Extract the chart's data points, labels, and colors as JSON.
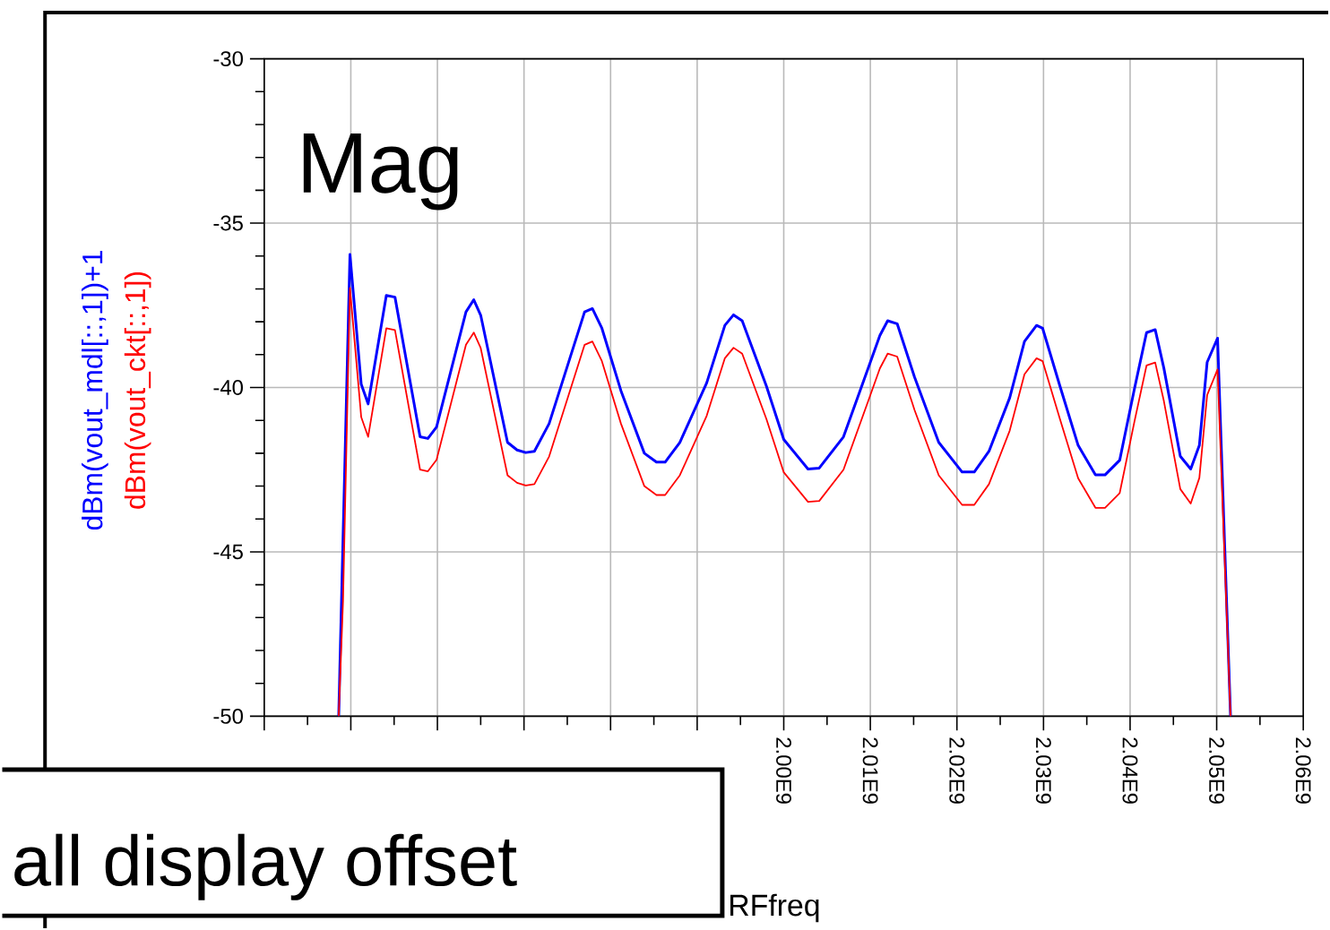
{
  "chart_data": {
    "type": "line",
    "xlabel": "RFfreq",
    "annotations": [
      "Mag",
      "all display offset"
    ],
    "xlim": [
      1940000000.0,
      2060000000.0
    ],
    "xticks": [
      {
        "value": 1940000000.0,
        "label": null
      },
      {
        "value": 1950000000.0,
        "label": null
      },
      {
        "value": 1960000000.0,
        "label": null
      },
      {
        "value": 1970000000.0,
        "label": null
      },
      {
        "value": 1980000000.0,
        "label": null
      },
      {
        "value": 1990000000.0,
        "label": null
      },
      {
        "value": 2000000000.0,
        "label": "2.00E9"
      },
      {
        "value": 2010000000.0,
        "label": "2.01E9"
      },
      {
        "value": 2020000000.0,
        "label": "2.02E9"
      },
      {
        "value": 2030000000.0,
        "label": "2.03E9"
      },
      {
        "value": 2040000000.0,
        "label": "2.04E9"
      },
      {
        "value": 2050000000.0,
        "label": "2.05E9"
      },
      {
        "value": 2060000000.0,
        "label": "2.06E9"
      }
    ],
    "ylim": [
      -50,
      -30
    ],
    "yticks": [
      -50,
      -45,
      -40,
      -35,
      -30
    ],
    "grid": true,
    "series": [
      {
        "name": "dBm(vout_mdl[::,1])+1",
        "color": "#0000ff",
        "x": [
          1948600000.0,
          1949100000.0,
          1949900000.0,
          1951200000.0,
          1952000000.0,
          1954100000.0,
          1955100000.0,
          1956800000.0,
          1958000000.0,
          1958900000.0,
          1959900000.0,
          1963300000.0,
          1964200000.0,
          1965000000.0,
          1968100000.0,
          1969200000.0,
          1970200000.0,
          1971200000.0,
          1972900000.0,
          1977000000.0,
          1977900000.0,
          1979000000.0,
          1981200000.0,
          1983900000.0,
          1985300000.0,
          1986300000.0,
          1988000000.0,
          1991100000.0,
          1993200000.0,
          1994200000.0,
          1995200000.0,
          1998000000.0,
          2000000000.0,
          2002800000.0,
          2004100000.0,
          2006900000.0,
          2010000000.0,
          2011100000.0,
          2012000000.0,
          2013100000.0,
          2015100000.0,
          2017900000.0,
          2020600000.0,
          2022000000.0,
          2023700000.0,
          2026100000.0,
          2027800000.0,
          2029200000.0,
          2029900000.0,
          2031900000.0,
          2034000000.0,
          2036000000.0,
          2037100000.0,
          2038800000.0,
          2040500000.0,
          2041900000.0,
          2042900000.0,
          2043900000.0,
          2045800000.0,
          2047000000.0,
          2048000000.0,
          2048900000.0,
          2050100000.0,
          2051600000.0
        ],
        "values": [
          -50,
          -44.6,
          -35.95,
          -39.9,
          -40.5,
          -37.2,
          -37.25,
          -39.75,
          -41.5,
          -41.55,
          -41.2,
          -37.7,
          -37.33,
          -37.8,
          -41.67,
          -41.9,
          -41.98,
          -41.94,
          -41.1,
          -37.7,
          -37.6,
          -38.2,
          -40.1,
          -42.0,
          -42.27,
          -42.27,
          -41.67,
          -39.86,
          -38.11,
          -37.79,
          -37.97,
          -39.96,
          -41.58,
          -42.48,
          -42.45,
          -41.5,
          -39.23,
          -38.42,
          -37.97,
          -38.06,
          -39.68,
          -41.67,
          -42.57,
          -42.57,
          -41.94,
          -40.31,
          -38.6,
          -38.11,
          -38.2,
          -39.96,
          -41.76,
          -42.66,
          -42.66,
          -42.21,
          -40.04,
          -38.33,
          -38.24,
          -39.41,
          -42.09,
          -42.48,
          -41.76,
          -39.23,
          -38.5,
          -50
        ]
      },
      {
        "name": "dBm(vout_ckt[::,1])",
        "color": "#ff0000",
        "x": [
          1948600000.0,
          1949100000.0,
          1949900000.0,
          1951200000.0,
          1952000000.0,
          1954100000.0,
          1955100000.0,
          1956800000.0,
          1958000000.0,
          1958900000.0,
          1959900000.0,
          1963300000.0,
          1964200000.0,
          1965000000.0,
          1968100000.0,
          1969200000.0,
          1970200000.0,
          1971200000.0,
          1972900000.0,
          1977000000.0,
          1977900000.0,
          1979000000.0,
          1981200000.0,
          1983900000.0,
          1985300000.0,
          1986300000.0,
          1988000000.0,
          1991100000.0,
          1993200000.0,
          1994200000.0,
          1995200000.0,
          1998000000.0,
          2000000000.0,
          2002800000.0,
          2004100000.0,
          2006900000.0,
          2010000000.0,
          2011100000.0,
          2012000000.0,
          2013100000.0,
          2015100000.0,
          2017900000.0,
          2020600000.0,
          2022000000.0,
          2023700000.0,
          2026100000.0,
          2027800000.0,
          2029200000.0,
          2029900000.0,
          2031900000.0,
          2034000000.0,
          2036000000.0,
          2037100000.0,
          2038800000.0,
          2040500000.0,
          2041900000.0,
          2042900000.0,
          2043900000.0,
          2045800000.0,
          2047000000.0,
          2048000000.0,
          2048900000.0,
          2050100000.0,
          2051600000.0
        ],
        "values": [
          -50,
          -46.5,
          -36.97,
          -40.9,
          -41.5,
          -38.2,
          -38.25,
          -40.75,
          -42.5,
          -42.55,
          -42.2,
          -38.7,
          -38.33,
          -38.8,
          -42.67,
          -42.9,
          -42.98,
          -42.94,
          -42.1,
          -38.7,
          -38.6,
          -39.2,
          -41.1,
          -43.0,
          -43.27,
          -43.27,
          -42.67,
          -40.86,
          -39.11,
          -38.79,
          -38.97,
          -40.96,
          -42.58,
          -43.48,
          -43.45,
          -42.5,
          -40.23,
          -39.42,
          -38.97,
          -39.06,
          -40.68,
          -42.67,
          -43.57,
          -43.57,
          -42.94,
          -41.31,
          -39.6,
          -39.11,
          -39.2,
          -40.96,
          -42.76,
          -43.66,
          -43.66,
          -43.21,
          -41.04,
          -39.33,
          -39.24,
          -40.41,
          -43.09,
          -43.53,
          -42.75,
          -40.23,
          -39.45,
          -50
        ]
      }
    ]
  }
}
